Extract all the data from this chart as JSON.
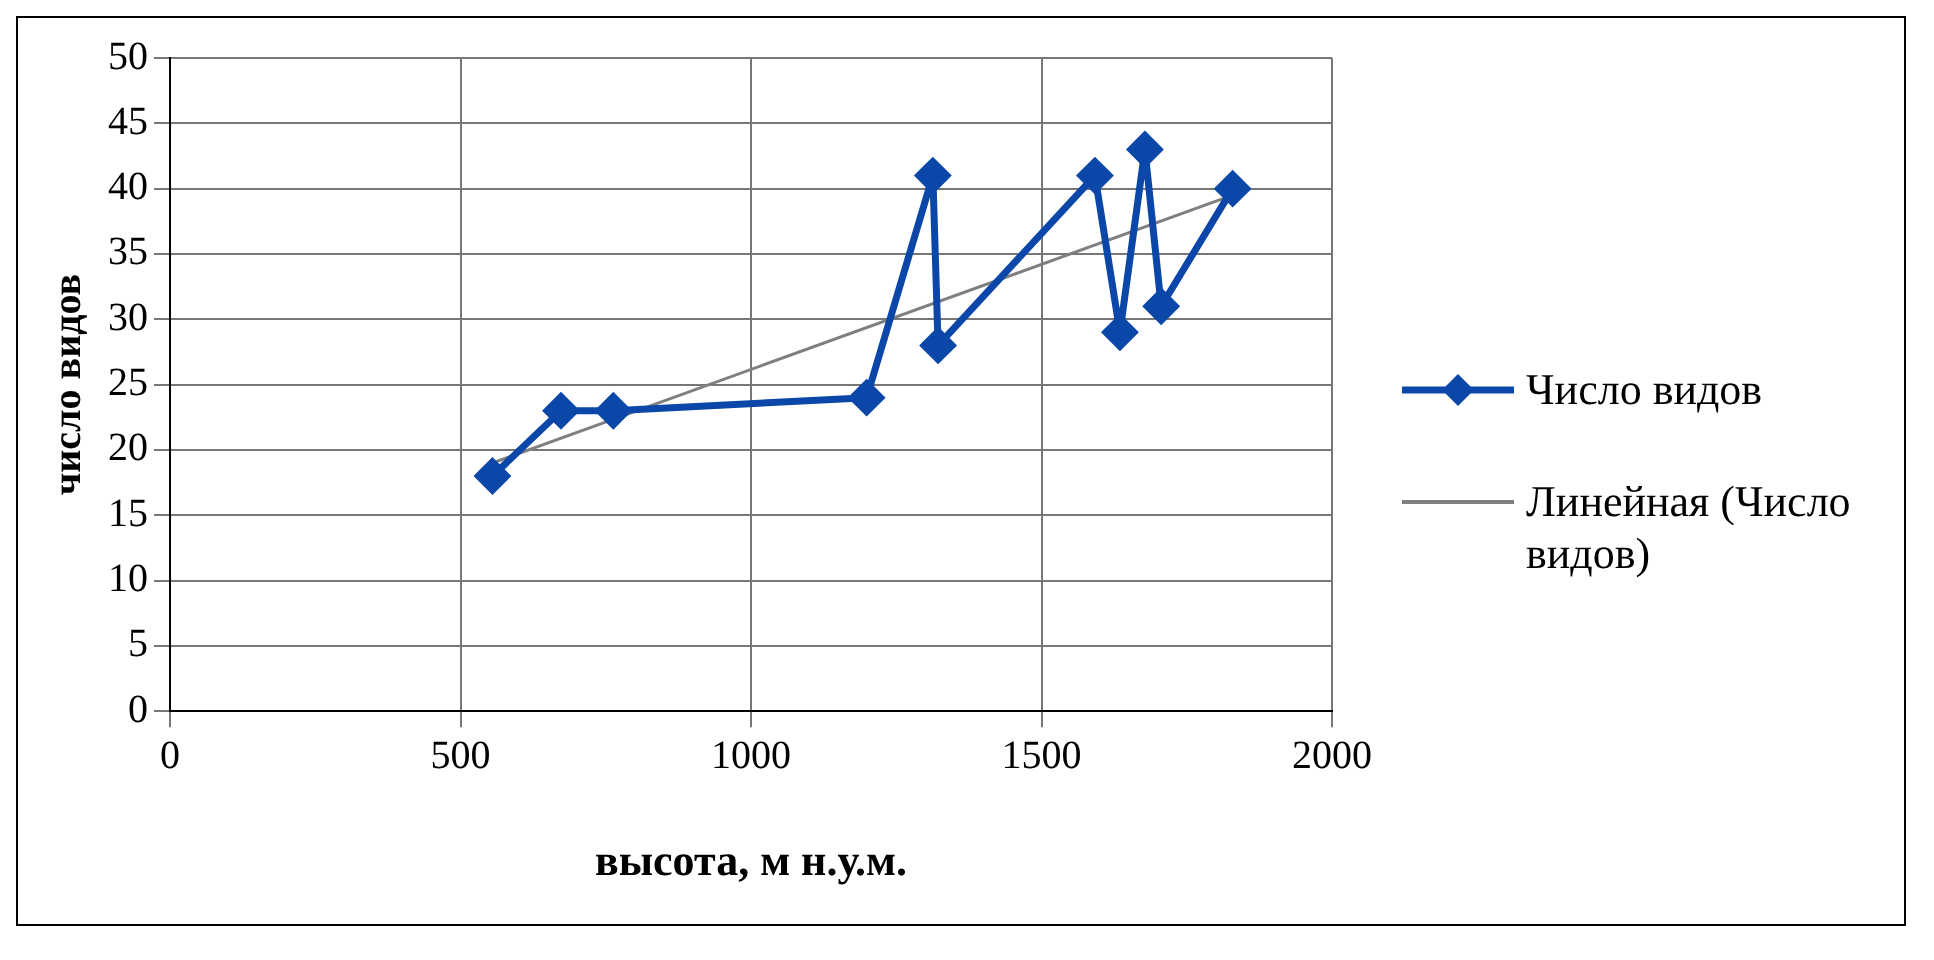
{
  "chart_data": {
    "type": "line",
    "xlabel": "высота, м н.у.м.",
    "ylabel": "число видов",
    "series": [
      {
        "name": "Число видов",
        "color": "#0a47a8",
        "marker": "diamond",
        "x": [
          555,
          673,
          763,
          1199,
          1313,
          1322,
          1592,
          1635,
          1678,
          1706,
          1829
        ],
        "values": [
          18,
          23,
          23,
          24,
          41,
          28,
          41,
          29,
          43,
          31,
          40
        ]
      },
      {
        "name": "Линейная (Число видов)",
        "color": "#7f7f7f",
        "marker": "none",
        "x": [
          555,
          1829
        ],
        "values": [
          19,
          39.5
        ]
      }
    ],
    "xlim": [
      0,
      2000
    ],
    "xticks": [
      0,
      500,
      1000,
      1500,
      2000
    ],
    "ylim": [
      0,
      50
    ],
    "yticks": [
      0,
      5,
      10,
      15,
      20,
      25,
      30,
      35,
      40,
      45,
      50
    ],
    "grid": true,
    "legend": "right"
  }
}
